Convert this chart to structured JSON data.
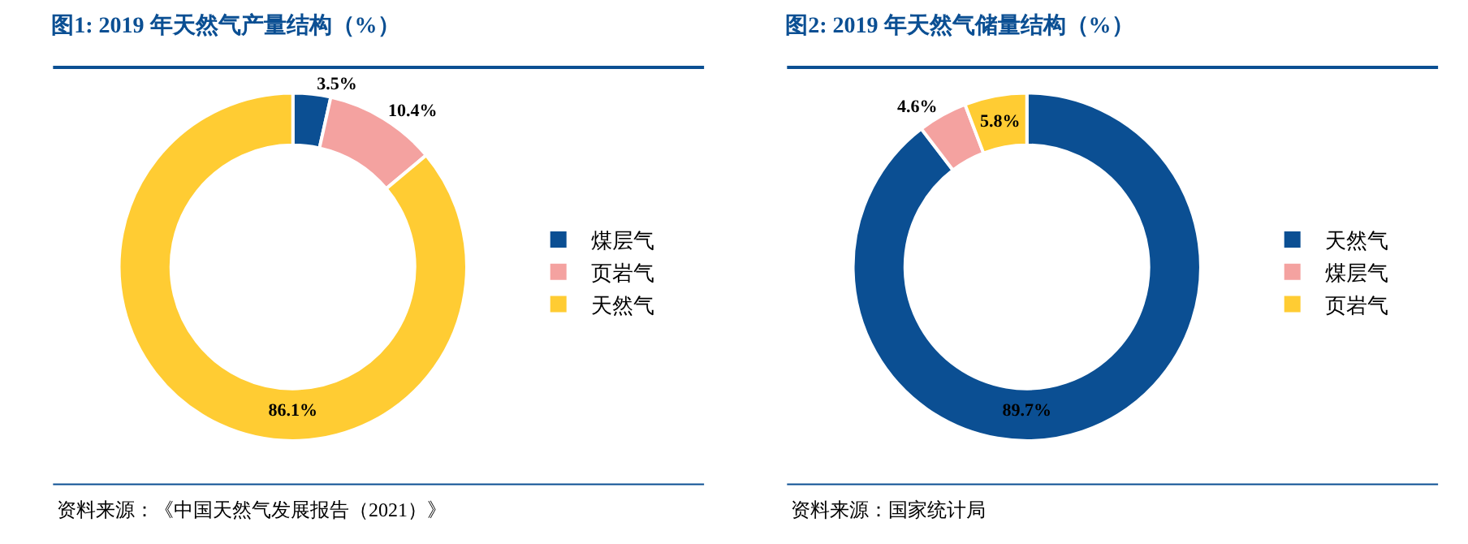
{
  "chart_data": [
    {
      "type": "donut",
      "title": "图1: 2019 年天然气产量结构（%）",
      "categories": [
        "煤层气",
        "页岩气",
        "天然气"
      ],
      "values": [
        3.5,
        10.4,
        86.1
      ],
      "value_labels": [
        "3.5%",
        "10.4%",
        "86.1%"
      ],
      "colors": [
        "#0b4f93",
        "#f4a2a0",
        "#ffcc33"
      ],
      "legend": "right",
      "annotations": [
        "资料来源：《中国天然气发展报告（2021）》"
      ]
    },
    {
      "type": "donut",
      "title": "图2: 2019 年天然气储量结构（%）",
      "categories": [
        "天然气",
        "煤层气",
        "页岩气"
      ],
      "values": [
        89.7,
        4.6,
        5.8
      ],
      "value_labels": [
        "89.7%",
        "4.6%",
        "5.8%"
      ],
      "colors": [
        "#0b4f93",
        "#f4a2a0",
        "#ffcc33"
      ],
      "legend": "right",
      "annotations": [
        "资料来源：国家统计局"
      ]
    }
  ]
}
